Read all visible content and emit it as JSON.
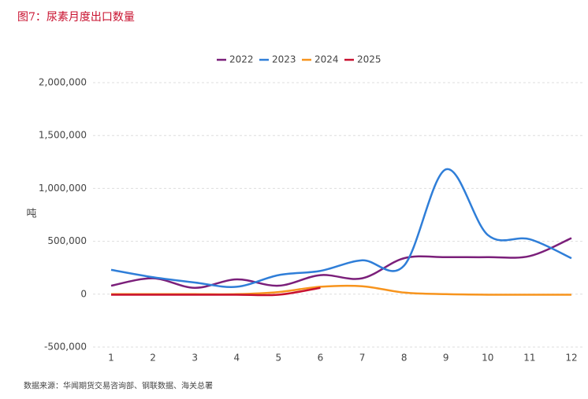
{
  "chart_data": {
    "type": "line",
    "title": "图7：尿素月度出口数量",
    "y_label": "吨",
    "source": "数据来源：华闻期货交易咨询部、钢联数据、海关总署",
    "categories": [
      "1",
      "2",
      "3",
      "4",
      "5",
      "6",
      "7",
      "8",
      "9",
      "10",
      "11",
      "12"
    ],
    "series": [
      {
        "name": "2022",
        "color": "#7b1f7a",
        "values": [
          80000,
          150000,
          60000,
          140000,
          80000,
          180000,
          150000,
          340000,
          350000,
          350000,
          360000,
          530000
        ]
      },
      {
        "name": "2023",
        "color": "#2f7ed8",
        "values": [
          230000,
          160000,
          110000,
          70000,
          180000,
          220000,
          320000,
          270000,
          1180000,
          560000,
          520000,
          340000
        ]
      },
      {
        "name": "2024",
        "color": "#f7941d",
        "values": [
          0,
          0,
          0,
          0,
          20000,
          70000,
          75000,
          15000,
          0,
          -5000,
          -5000,
          -5000
        ]
      },
      {
        "name": "2025",
        "color": "#c8102e",
        "values": [
          -5000,
          -5000,
          -5000,
          -5000,
          -5000,
          60000,
          null,
          null,
          null,
          null,
          null,
          null
        ]
      }
    ],
    "ylim": [
      -500000,
      2000000
    ],
    "yticks": [
      {
        "value": -500000,
        "label": "-500,000"
      },
      0,
      {
        "value": 500000,
        "label": "500,000"
      },
      {
        "value": 1000000,
        "label": "1,000,000"
      },
      {
        "value": 1500000,
        "label": "1,500,000"
      },
      {
        "value": 2000000,
        "label": "2,000,000"
      }
    ],
    "grid": true,
    "legend": "top"
  }
}
